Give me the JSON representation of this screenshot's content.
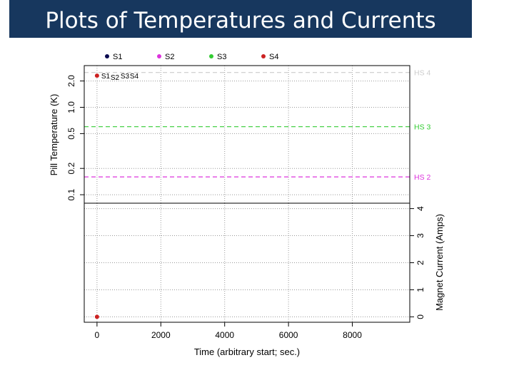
{
  "slide": {
    "title": "Plots of Temperatures and Currents"
  },
  "colors": {
    "title_bg": "#17375e",
    "S1": "#0a0a50",
    "S2": "#dd33dd",
    "S3": "#33cc33",
    "S4": "#cc2222",
    "HS2": "#dd33dd",
    "HS3": "#33cc33",
    "HS4": "#cccccc"
  },
  "chart_data": [
    {
      "type": "scatter",
      "panel": "temperature",
      "legend": {
        "placement": "top",
        "entries": [
          "S1",
          "S2",
          "S3",
          "S4"
        ]
      },
      "ylabel": "Pill Temperature (K)",
      "yscale": "log",
      "ylim": [
        0.08,
        3.0
      ],
      "yticks": [
        "0.1",
        "0.2",
        "0.5",
        "1.0",
        "2.0"
      ],
      "xlim": [
        -400,
        9800
      ],
      "grid": true,
      "points": [
        {
          "series": "S4",
          "x": 0,
          "y": 2.3,
          "label": "S1"
        },
        {
          "series": "S4",
          "x": 0,
          "y": 2.3,
          "label": "S2"
        },
        {
          "series": "S4",
          "x": 0,
          "y": 2.3,
          "label": "S3"
        },
        {
          "series": "S4",
          "x": 0,
          "y": 2.3,
          "label": "S4"
        }
      ],
      "reference_lines": [
        {
          "label": "HS 2",
          "y": 0.16
        },
        {
          "label": "HS 3",
          "y": 0.6
        },
        {
          "label": "HS 4",
          "y": 2.5
        }
      ]
    },
    {
      "type": "scatter",
      "panel": "current",
      "ylabel": "Magnet Current (Amps)",
      "ylim": [
        -0.2,
        4.2
      ],
      "yticks": [
        "0",
        "1",
        "2",
        "3",
        "4"
      ],
      "xlabel": "Time (arbitrary start; sec.)",
      "xlim": [
        -400,
        9800
      ],
      "xticks": [
        "0",
        "2000",
        "4000",
        "6000",
        "8000"
      ],
      "grid": true,
      "points": [
        {
          "series": "S4",
          "x": 0,
          "y": 0
        }
      ]
    }
  ]
}
